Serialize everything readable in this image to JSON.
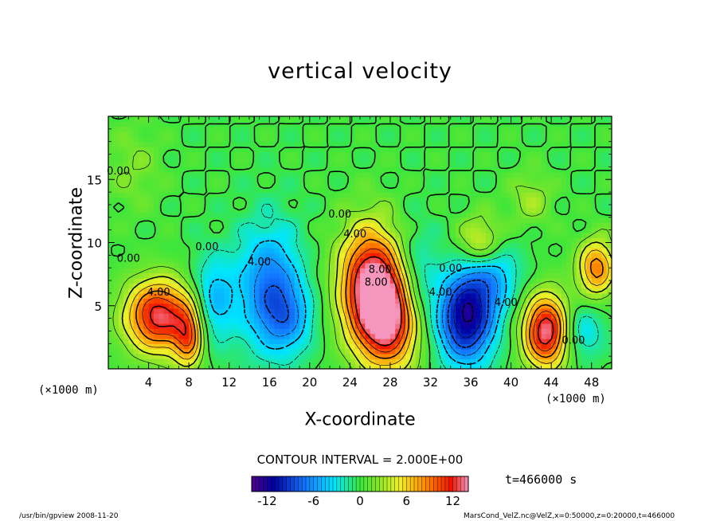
{
  "chart_data": {
    "type": "heatmap",
    "title": "vertical velocity",
    "xlabel": "X-coordinate",
    "ylabel": "Z-coordinate",
    "x_unit_label": "(×1000 m)",
    "xlim": [
      0,
      50
    ],
    "ylim": [
      0,
      20
    ],
    "xticks": [
      "4",
      "8",
      "12",
      "16",
      "20",
      "24",
      "28",
      "32",
      "36",
      "40",
      "44",
      "48"
    ],
    "xtick_values": [
      4,
      8,
      12,
      16,
      20,
      24,
      28,
      32,
      36,
      40,
      44,
      48
    ],
    "yticks": [
      "5",
      "10",
      "15"
    ],
    "ytick_values": [
      5,
      10,
      15
    ],
    "contour_interval": "CONTOUR INTERVAL = 2.000E+00",
    "contour_labels": [
      {
        "text": "0.00",
        "x": 1.0,
        "y": 15.4
      },
      {
        "text": "0.00",
        "x": 2.0,
        "y": 8.5
      },
      {
        "text": "4.00",
        "x": 5.0,
        "y": 5.8
      },
      {
        "text": "0.00",
        "x": 9.8,
        "y": 9.4
      },
      {
        "text": "4.00",
        "x": 15.0,
        "y": 8.2
      },
      {
        "text": "0.00",
        "x": 23.0,
        "y": 12.0
      },
      {
        "text": "4.00",
        "x": 24.5,
        "y": 10.4
      },
      {
        "text": "8.00",
        "x": 27.0,
        "y": 7.6
      },
      {
        "text": "8.00",
        "x": 26.6,
        "y": 6.6
      },
      {
        "text": "4.00",
        "x": 33.0,
        "y": 5.8
      },
      {
        "text": "0.00",
        "x": 34.0,
        "y": 7.7
      },
      {
        "text": "4.00",
        "x": 39.5,
        "y": 5.0
      },
      {
        "text": "0.00",
        "x": 46.2,
        "y": 2.0
      }
    ],
    "cells": [
      {
        "x": 5.0,
        "z": 4.2,
        "w": 13,
        "sx": 2.3,
        "sz": 2.0
      },
      {
        "x": 8.0,
        "z": 2.5,
        "w": 8,
        "sx": 1.0,
        "sz": 1.8
      },
      {
        "x": 10.5,
        "z": 5.5,
        "w": -5,
        "sx": 1.5,
        "sz": 2.5
      },
      {
        "x": 16.0,
        "z": 6.5,
        "w": -7,
        "sx": 2.2,
        "sz": 3.5
      },
      {
        "x": 18.0,
        "z": 4.0,
        "w": -4,
        "sx": 1.8,
        "sz": 2.0
      },
      {
        "x": 26.0,
        "z": 7.0,
        "w": 12,
        "sx": 2.2,
        "sz": 3.2
      },
      {
        "x": 28.0,
        "z": 4.0,
        "w": 13,
        "sx": 2.3,
        "sz": 2.8
      },
      {
        "x": 30.5,
        "z": 6.5,
        "w": -5,
        "sx": 1.5,
        "sz": 3.0
      },
      {
        "x": 35.5,
        "z": 4.0,
        "w": -12,
        "sx": 2.0,
        "sz": 2.5
      },
      {
        "x": 38.0,
        "z": 7.5,
        "w": -5,
        "sx": 2.0,
        "sz": 2.0
      },
      {
        "x": 37.0,
        "z": 10.0,
        "w": 6,
        "sx": 1.5,
        "sz": 1.5
      },
      {
        "x": 43.5,
        "z": 3.0,
        "w": 14,
        "sx": 1.6,
        "sz": 2.0
      },
      {
        "x": 48.5,
        "z": 8.0,
        "w": 9,
        "sx": 1.3,
        "sz": 1.6
      },
      {
        "x": 47.0,
        "z": 3.0,
        "w": -4,
        "sx": 1.5,
        "sz": 1.5
      },
      {
        "x": 2.5,
        "z": 16.0,
        "w": 2,
        "sx": 2.0,
        "sz": 2.5
      },
      {
        "x": 42.0,
        "z": 13.5,
        "w": 3,
        "sx": 1.5,
        "sz": 1.5
      }
    ],
    "colorbar": {
      "vmin": -14,
      "vmax": 14,
      "ticks": [
        "-12",
        "-6",
        "0",
        "6",
        "12"
      ],
      "tick_values": [
        -12,
        -6,
        0,
        6,
        12
      ]
    }
  },
  "time_label": "t=466000  s",
  "footer_left": "/usr/bin/gpview   2008-11-20",
  "footer_right": "MarsCond_VelZ.nc@VelZ,x=0:50000,z=0:20000,t=466000"
}
